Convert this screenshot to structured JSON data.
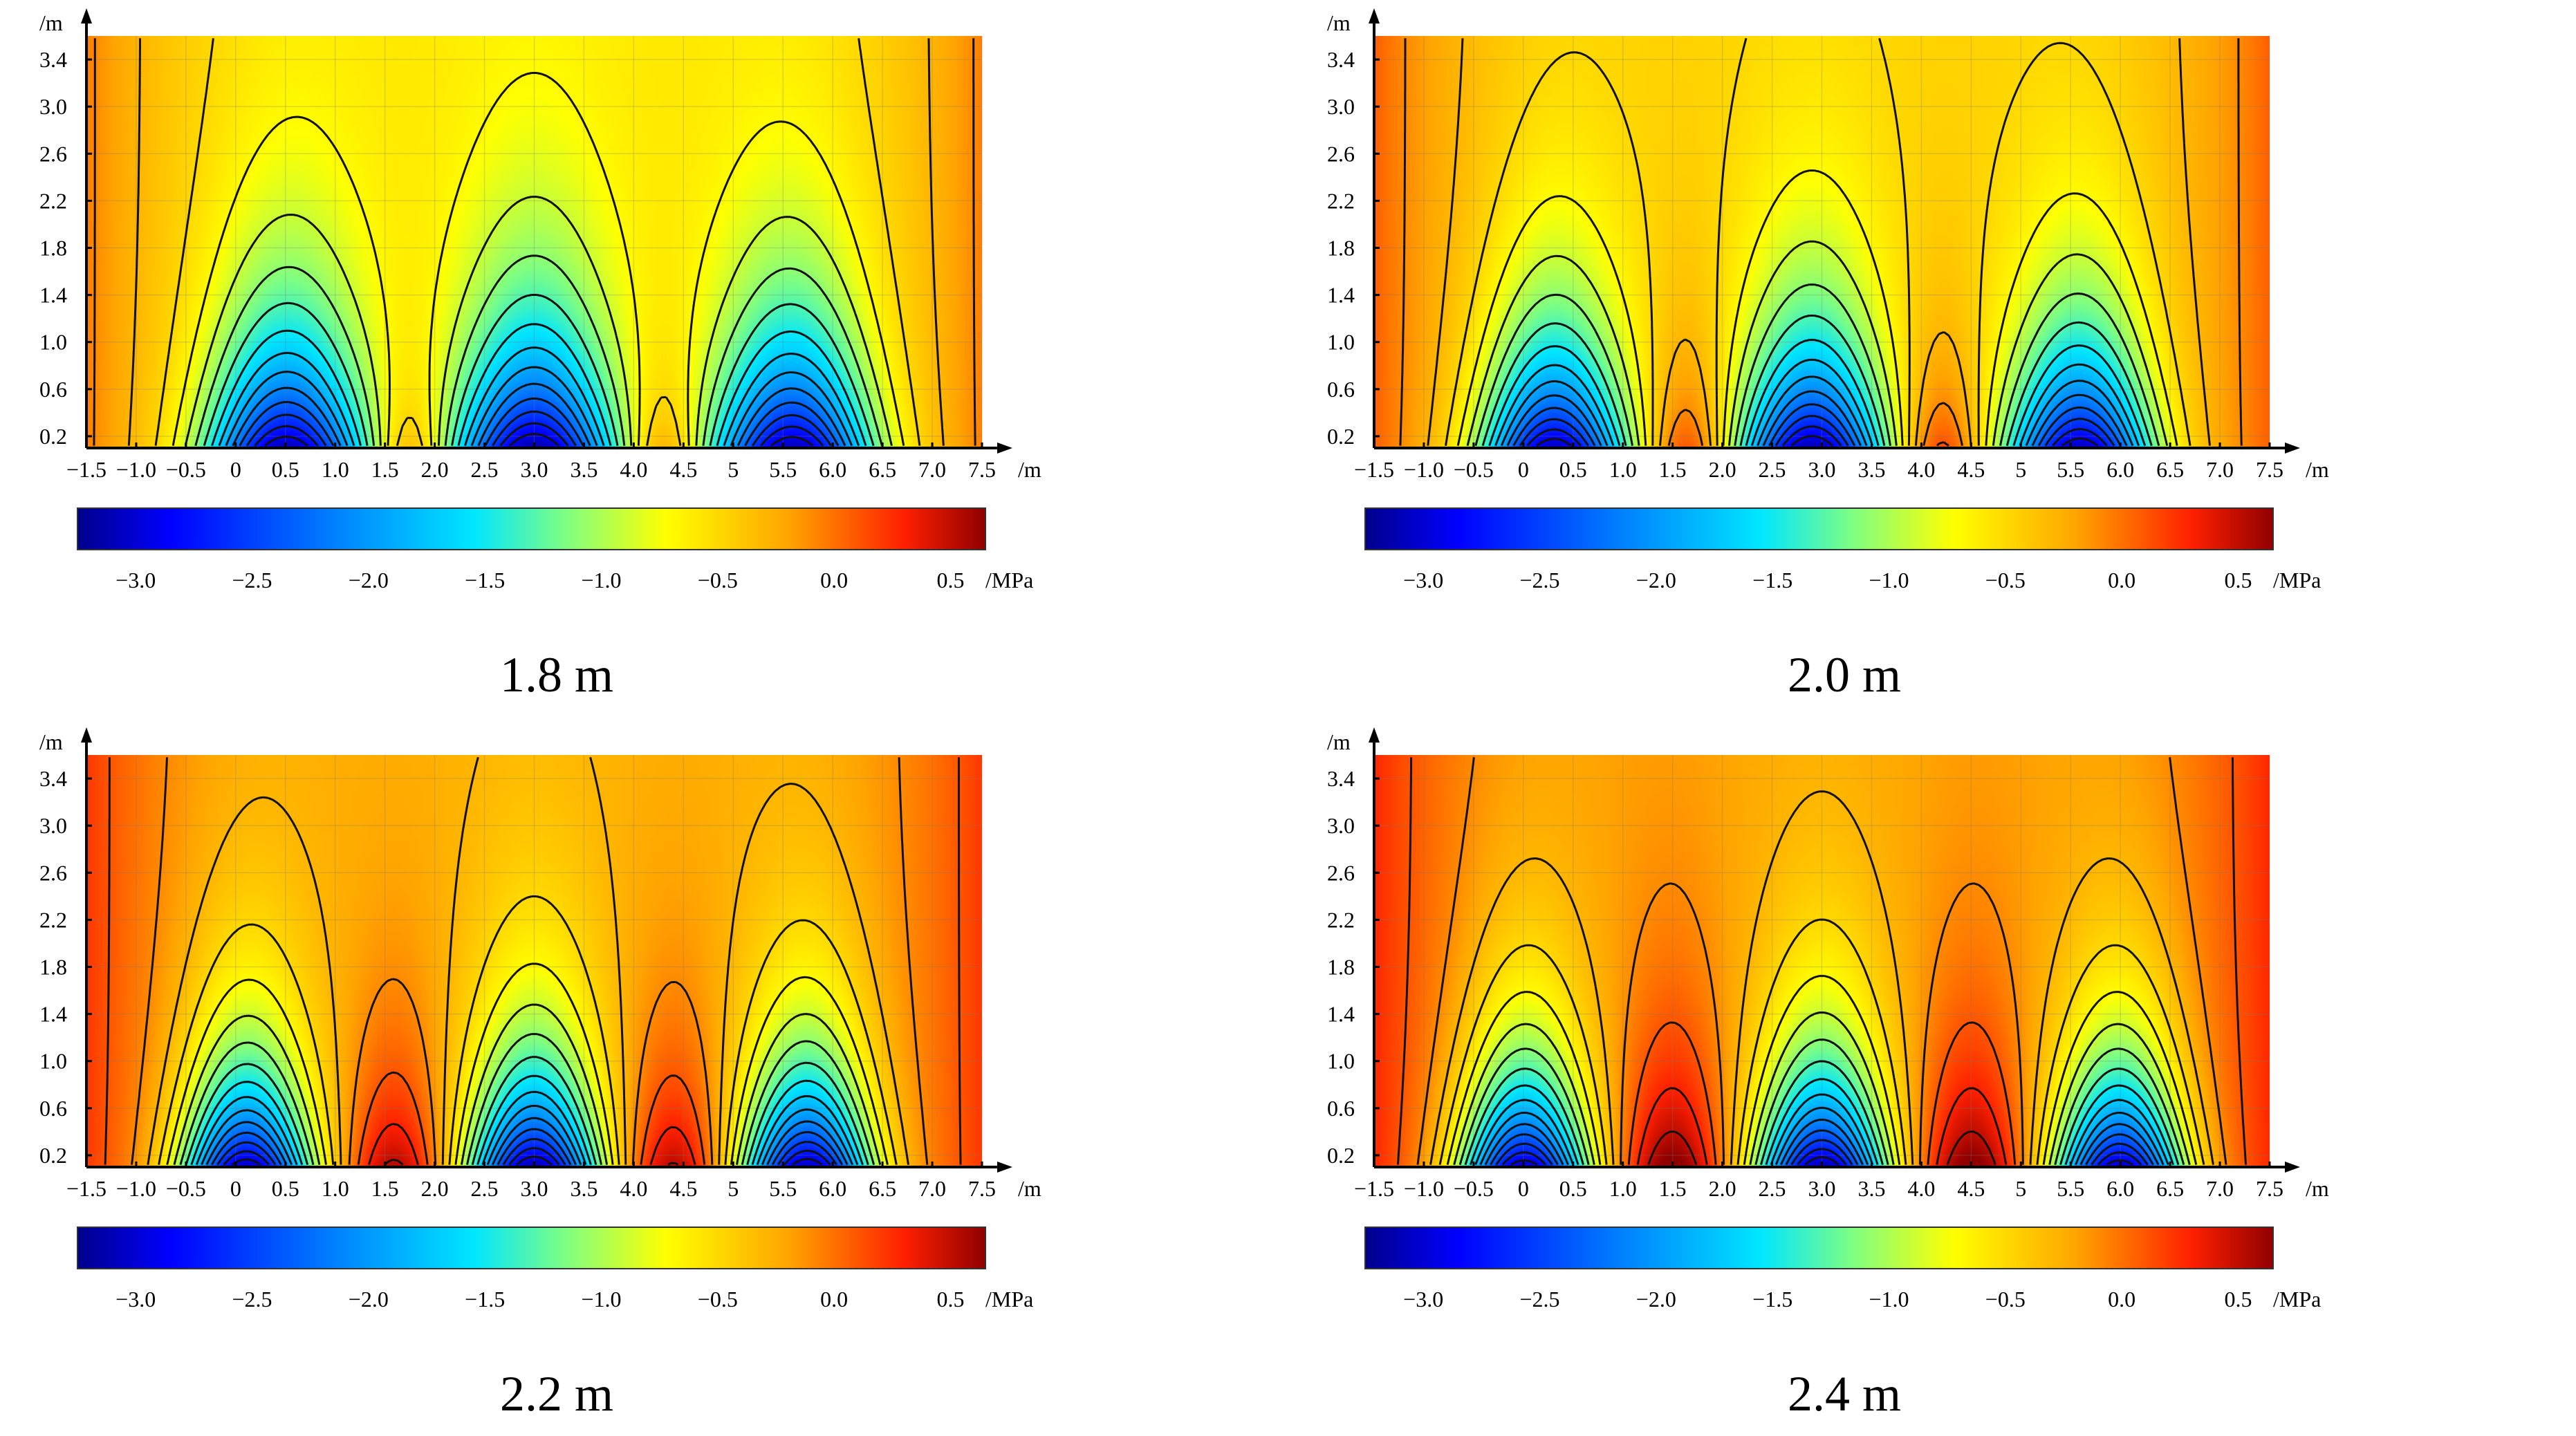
{
  "colorscale": {
    "stops": [
      "#00008c",
      "#0000ff",
      "#0080ff",
      "#00e6ff",
      "#80ff80",
      "#ffff00",
      "#ffa500",
      "#ff2000",
      "#900000"
    ],
    "stop_values": [
      -3.25,
      -2.85,
      -2.15,
      -1.55,
      -1.15,
      -0.72,
      -0.2,
      0.3,
      0.65
    ]
  },
  "chart_data": [
    {
      "type": "heatmap",
      "title": "1.8 m",
      "xlabel": "/m",
      "ylabel": "/m",
      "colorbar_label": "/MPa",
      "xlim": [
        -1.5,
        7.5
      ],
      "ylim": [
        0.1,
        3.6
      ],
      "clim": [
        -3.25,
        0.65
      ],
      "xticks": [
        "−1.5",
        "−1.0",
        "−0.5",
        "0",
        "0.5",
        "1.0",
        "1.5",
        "2.0",
        "2.5",
        "3.0",
        "3.5",
        "4.0",
        "4.5",
        "5",
        "5.5",
        "6.0",
        "6.5",
        "7.0",
        "7.5"
      ],
      "xtick_values": [
        -1.5,
        -1.0,
        -0.5,
        0,
        0.5,
        1.0,
        1.5,
        2.0,
        2.5,
        3.0,
        3.5,
        4.0,
        4.5,
        5,
        5.5,
        6.0,
        6.5,
        7.0,
        7.5
      ],
      "yticks": [
        "0.2",
        "0.6",
        "1.0",
        "1.4",
        "1.8",
        "2.2",
        "2.6",
        "3.0",
        "3.4"
      ],
      "ytick_values": [
        0.2,
        0.6,
        1.0,
        1.4,
        1.8,
        2.2,
        2.6,
        3.0,
        3.4
      ],
      "colorbar_ticks": [
        "−3.0",
        "−2.5",
        "−2.0",
        "−1.5",
        "−1.0",
        "−0.5",
        "0.0",
        "0.5"
      ],
      "colorbar_tick_values": [
        -3.0,
        -2.5,
        -2.0,
        -1.5,
        -1.0,
        -0.5,
        0.0,
        0.5
      ],
      "field": {
        "base": -0.6,
        "side": 0.55,
        "side_width": 0.9,
        "sources": [
          {
            "x": 0.5,
            "strength": 2.6,
            "sigma_x": 0.55,
            "height": 1.0
          },
          {
            "x": 3.0,
            "strength": 2.6,
            "sigma_x": 0.55,
            "height": 1.0
          },
          {
            "x": 5.6,
            "strength": 2.6,
            "sigma_x": 0.55,
            "height": 1.0
          }
        ],
        "bumps": [
          {
            "x": 1.75,
            "strength": 0.6,
            "sigma_x": 0.25,
            "height": 0.6
          },
          {
            "x": 4.3,
            "strength": 0.6,
            "sigma_x": 0.25,
            "height": 0.6
          }
        ]
      },
      "contour_levels": [
        -2.9,
        -2.7,
        -2.5,
        -2.3,
        -2.1,
        -1.9,
        -1.7,
        -1.5,
        -1.3,
        -1.1,
        -0.9,
        -0.7,
        -0.5,
        -0.3,
        -0.1,
        0.1,
        0.3,
        0.5
      ]
    },
    {
      "type": "heatmap",
      "title": "2.0 m",
      "xlabel": "/m",
      "ylabel": "/m",
      "colorbar_label": "/MPa",
      "xlim": [
        -1.5,
        7.5
      ],
      "ylim": [
        0.1,
        3.6
      ],
      "clim": [
        -3.25,
        0.65
      ],
      "xticks": [
        "−1.5",
        "−1.0",
        "−0.5",
        "0",
        "0.5",
        "1.0",
        "1.5",
        "2.0",
        "2.5",
        "3.0",
        "3.5",
        "4.0",
        "4.5",
        "5",
        "5.5",
        "6.0",
        "6.5",
        "7.0",
        "7.5"
      ],
      "xtick_values": [
        -1.5,
        -1.0,
        -0.5,
        0,
        0.5,
        1.0,
        1.5,
        2.0,
        2.5,
        3.0,
        3.5,
        4.0,
        4.5,
        5,
        5.5,
        6.0,
        6.5,
        7.0,
        7.5
      ],
      "yticks": [
        "0.2",
        "0.6",
        "1.0",
        "1.4",
        "1.8",
        "2.2",
        "2.6",
        "3.0",
        "3.4"
      ],
      "ytick_values": [
        0.2,
        0.6,
        1.0,
        1.4,
        1.8,
        2.2,
        2.6,
        3.0,
        3.4
      ],
      "colorbar_ticks": [
        "−3.0",
        "−2.5",
        "−2.0",
        "−1.5",
        "−1.0",
        "−0.5",
        "0.0",
        "0.5"
      ],
      "colorbar_tick_values": [
        -3.0,
        -2.5,
        -2.0,
        -1.5,
        -1.0,
        -0.5,
        0.0,
        0.5
      ],
      "field": {
        "base": -0.48,
        "side": 0.55,
        "side_width": 0.85,
        "sources": [
          {
            "x": 0.3,
            "strength": 2.7,
            "sigma_x": 0.5,
            "height": 0.95
          },
          {
            "x": 2.9,
            "strength": 2.7,
            "sigma_x": 0.5,
            "height": 0.95
          },
          {
            "x": 5.6,
            "strength": 2.7,
            "sigma_x": 0.5,
            "height": 0.95
          }
        ],
        "bumps": [
          {
            "x": 1.65,
            "strength": 0.75,
            "sigma_x": 0.28,
            "height": 0.8
          },
          {
            "x": 4.2,
            "strength": 0.75,
            "sigma_x": 0.28,
            "height": 0.8
          }
        ]
      },
      "contour_levels": [
        -2.9,
        -2.7,
        -2.5,
        -2.3,
        -2.1,
        -1.9,
        -1.7,
        -1.5,
        -1.3,
        -1.1,
        -0.9,
        -0.7,
        -0.5,
        -0.3,
        -0.1,
        0.1,
        0.3,
        0.5
      ]
    },
    {
      "type": "heatmap",
      "title": "2.2 m",
      "xlabel": "/m",
      "ylabel": "/m",
      "colorbar_label": "/MPa",
      "xlim": [
        -1.5,
        7.5
      ],
      "ylim": [
        0.1,
        3.6
      ],
      "clim": [
        -3.25,
        0.65
      ],
      "xticks": [
        "−1.5",
        "−1.0",
        "−0.5",
        "0",
        "0.5",
        "1.0",
        "1.5",
        "2.0",
        "2.5",
        "3.0",
        "3.5",
        "4.0",
        "4.5",
        "5",
        "5.5",
        "6.0",
        "6.5",
        "7.0",
        "7.5"
      ],
      "xtick_values": [
        -1.5,
        -1.0,
        -0.5,
        0,
        0.5,
        1.0,
        1.5,
        2.0,
        2.5,
        3.0,
        3.5,
        4.0,
        4.5,
        5,
        5.5,
        6.0,
        6.5,
        7.0,
        7.5
      ],
      "yticks": [
        "0.2",
        "0.6",
        "1.0",
        "1.4",
        "1.8",
        "2.2",
        "2.6",
        "3.0",
        "3.4"
      ],
      "ytick_values": [
        0.2,
        0.6,
        1.0,
        1.4,
        1.8,
        2.2,
        2.6,
        3.0,
        3.4
      ],
      "colorbar_ticks": [
        "−3.0",
        "−2.5",
        "−2.0",
        "−1.5",
        "−1.0",
        "−0.5",
        "0.0",
        "0.5"
      ],
      "colorbar_tick_values": [
        -3.0,
        -2.5,
        -2.0,
        -1.5,
        -1.0,
        -0.5,
        0.0,
        0.5
      ],
      "field": {
        "base": -0.28,
        "side": 0.5,
        "side_width": 0.85,
        "sources": [
          {
            "x": 0.1,
            "strength": 2.9,
            "sigma_x": 0.45,
            "height": 0.9
          },
          {
            "x": 3.0,
            "strength": 2.9,
            "sigma_x": 0.45,
            "height": 0.9
          },
          {
            "x": 5.75,
            "strength": 2.9,
            "sigma_x": 0.45,
            "height": 0.9
          }
        ],
        "bumps": [
          {
            "x": 1.6,
            "strength": 0.85,
            "sigma_x": 0.35,
            "height": 1.0
          },
          {
            "x": 4.4,
            "strength": 0.85,
            "sigma_x": 0.35,
            "height": 1.0
          }
        ]
      },
      "contour_levels": [
        -2.9,
        -2.7,
        -2.5,
        -2.3,
        -2.1,
        -1.9,
        -1.7,
        -1.5,
        -1.3,
        -1.1,
        -0.9,
        -0.7,
        -0.5,
        -0.3,
        -0.1,
        0.1,
        0.3,
        0.5
      ]
    },
    {
      "type": "heatmap",
      "title": "2.4 m",
      "xlabel": "/m",
      "ylabel": "/m",
      "colorbar_label": "/MPa",
      "xlim": [
        -1.5,
        7.5
      ],
      "ylim": [
        0.1,
        3.6
      ],
      "clim": [
        -3.25,
        0.65
      ],
      "xticks": [
        "−1.5",
        "−1.0",
        "−0.5",
        "0",
        "0.5",
        "1.0",
        "1.5",
        "2.0",
        "2.5",
        "3.0",
        "3.5",
        "4.0",
        "4.5",
        "5",
        "5.5",
        "6.0",
        "6.5",
        "7.0",
        "7.5"
      ],
      "xtick_values": [
        -1.5,
        -1.0,
        -0.5,
        0,
        0.5,
        1.0,
        1.5,
        2.0,
        2.5,
        3.0,
        3.5,
        4.0,
        4.5,
        5,
        5.5,
        6.0,
        6.5,
        7.0,
        7.5
      ],
      "yticks": [
        "0.2",
        "0.6",
        "1.0",
        "1.4",
        "1.8",
        "2.2",
        "2.6",
        "3.0",
        "3.4"
      ],
      "ytick_values": [
        0.2,
        0.6,
        1.0,
        1.4,
        1.8,
        2.2,
        2.6,
        3.0,
        3.4
      ],
      "colorbar_ticks": [
        "−3.0",
        "−2.5",
        "−2.0",
        "−1.5",
        "−1.0",
        "−0.5",
        "0.0",
        "0.5"
      ],
      "colorbar_tick_values": [
        -3.0,
        -2.5,
        -2.0,
        -1.5,
        -1.0,
        -0.5,
        0.0,
        0.5
      ],
      "field": {
        "base": -0.22,
        "side": 0.5,
        "side_width": 0.85,
        "sources": [
          {
            "x": 0.0,
            "strength": 2.95,
            "sigma_x": 0.45,
            "height": 0.9
          },
          {
            "x": 3.0,
            "strength": 2.95,
            "sigma_x": 0.45,
            "height": 0.9
          },
          {
            "x": 6.0,
            "strength": 2.95,
            "sigma_x": 0.45,
            "height": 0.9
          }
        ],
        "bumps": [
          {
            "x": 1.5,
            "strength": 0.95,
            "sigma_x": 0.38,
            "height": 1.1
          },
          {
            "x": 4.5,
            "strength": 0.95,
            "sigma_x": 0.38,
            "height": 1.1
          }
        ]
      },
      "contour_levels": [
        -2.9,
        -2.7,
        -2.5,
        -2.3,
        -2.1,
        -1.9,
        -1.7,
        -1.5,
        -1.3,
        -1.1,
        -0.9,
        -0.7,
        -0.5,
        -0.3,
        -0.1,
        0.1,
        0.3,
        0.5
      ]
    }
  ]
}
